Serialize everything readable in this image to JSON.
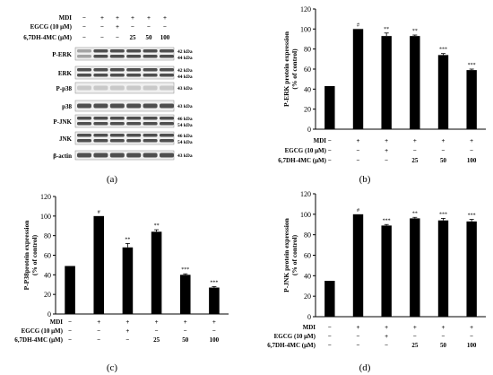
{
  "panel_labels": [
    "(a)",
    "(b)",
    "(c)",
    "(d)"
  ],
  "blot": {
    "treatment_labels": [
      "MDI",
      "EGCG (10 μM)",
      "6,7DH-4MC (μM)"
    ],
    "rows": [
      [
        "−",
        "+",
        "+",
        "+",
        "+",
        "+"
      ],
      [
        "−",
        "−",
        "+",
        "−",
        "−",
        "−"
      ],
      [
        "−",
        "−",
        "−",
        "25",
        "50",
        "100"
      ]
    ],
    "proteins": [
      {
        "name": "P-ERK",
        "kda": [
          "42 kDa",
          "44 kDa"
        ]
      },
      {
        "name": "ERK",
        "kda": [
          "42 kDa",
          "44 kDa"
        ]
      },
      {
        "name": "P-p38",
        "kda": [
          "43 kDa"
        ]
      },
      {
        "name": "p38",
        "kda": [
          "43 kDa"
        ]
      },
      {
        "name": "P-JNK",
        "kda": [
          "46 kDa",
          "54 kDa"
        ]
      },
      {
        "name": "JNK",
        "kda": [
          "46 kDa",
          "54 kDa"
        ]
      },
      {
        "name": "β-actin",
        "kda": [
          "43 kDa"
        ]
      }
    ]
  },
  "chart_data": [
    {
      "panel": "(b)",
      "type": "bar",
      "ylabel": "P-ERK protein expression\n(% of control)",
      "ylim": [
        0,
        120
      ],
      "yticks": [
        0,
        20,
        40,
        60,
        80,
        100,
        120
      ],
      "values": [
        43,
        100,
        93,
        93,
        74,
        59
      ],
      "errors": [
        0,
        0,
        3,
        1,
        1.5,
        1
      ],
      "annotations": [
        "",
        "#",
        "**",
        "**",
        "***",
        "***"
      ],
      "treatment_labels": [
        "MDI",
        "EGCG (10 μM)",
        "6,7DH-4MC (μM)"
      ],
      "rows": [
        [
          "−",
          "+",
          "+",
          "+",
          "+",
          "+"
        ],
        [
          "−",
          "−",
          "+",
          "−",
          "−",
          "−"
        ],
        [
          "−",
          "−",
          "−",
          "25",
          "50",
          "100"
        ]
      ]
    },
    {
      "panel": "(c)",
      "type": "bar",
      "ylabel": "P-P38protein expression\n(% of control)",
      "ylim": [
        0,
        120
      ],
      "yticks": [
        0,
        20,
        40,
        60,
        80,
        100,
        120
      ],
      "values": [
        49,
        100,
        68,
        84,
        40,
        27
      ],
      "errors": [
        0,
        0,
        4,
        2,
        1,
        1
      ],
      "annotations": [
        "",
        "#",
        "**",
        "**",
        "***",
        "***"
      ],
      "treatment_labels": [
        "MDI",
        "EGCG (10 μM)",
        "6,7DH-4MC (μM)"
      ],
      "rows": [
        [
          "−",
          "+",
          "+",
          "+",
          "+",
          "+"
        ],
        [
          "−",
          "−",
          "+",
          "−",
          "−",
          "−"
        ],
        [
          "−",
          "−",
          "−",
          "25",
          "50",
          "100"
        ]
      ]
    },
    {
      "panel": "(d)",
      "type": "bar",
      "ylabel": "P-JNK protein expression\n(% of control)",
      "ylim": [
        0,
        120
      ],
      "yticks": [
        0,
        20,
        40,
        60,
        80,
        100,
        120
      ],
      "values": [
        35,
        100,
        89,
        96,
        94,
        93
      ],
      "errors": [
        0,
        0,
        1,
        1,
        2,
        2
      ],
      "annotations": [
        "",
        "#",
        "***",
        "**",
        "***",
        "***"
      ],
      "treatment_labels": [
        "MDI",
        "EGCG (10 μM)",
        "6,7DH-4MC (μM)"
      ],
      "rows": [
        [
          "−",
          "+",
          "+",
          "+",
          "+",
          "+"
        ],
        [
          "−",
          "−",
          "+",
          "−",
          "−",
          "−"
        ],
        [
          "−",
          "−",
          "−",
          "25",
          "50",
          "100"
        ]
      ]
    }
  ]
}
